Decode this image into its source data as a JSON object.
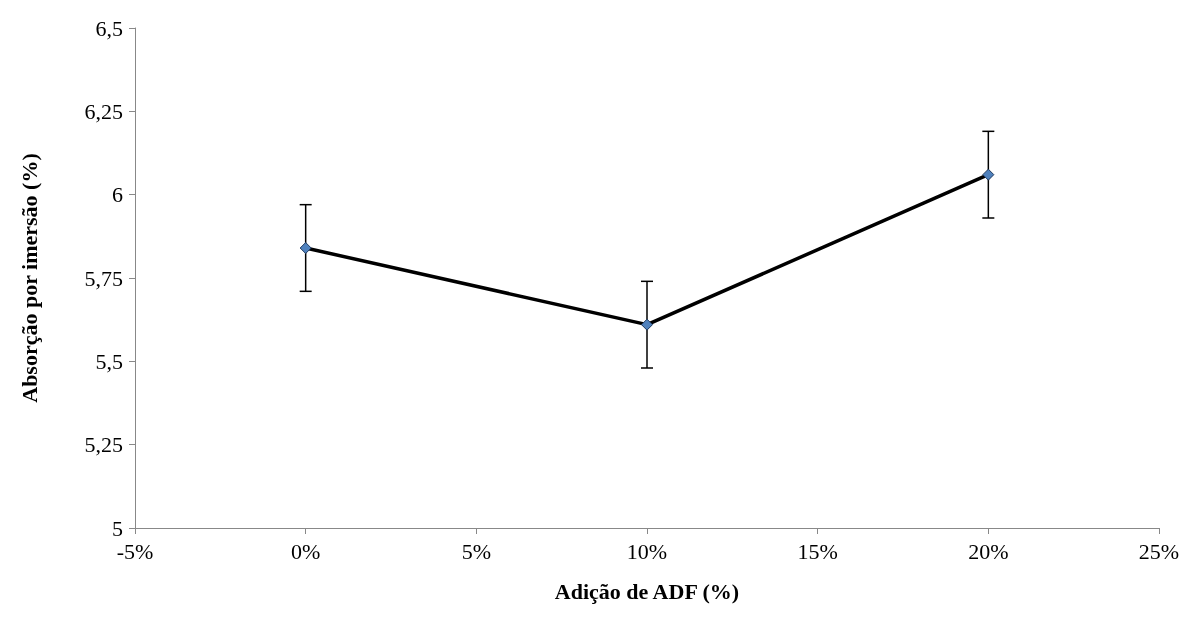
{
  "chart_data": {
    "type": "line",
    "xlabel": "Adição de ADF (%)",
    "ylabel": "Absorção por imersão (%)",
    "x": [
      0,
      10,
      20
    ],
    "series": [
      {
        "color": "#000000",
        "colors": [
          "#4f81bd",
          "#4f81bd",
          "#4f81bd"
        ],
        "values": [
          5.84,
          5.61,
          6.06
        ],
        "errors": [
          0.13,
          0.13,
          0.13
        ]
      }
    ],
    "xlim": [
      -5,
      25
    ],
    "xticks": [
      {
        "value": -5,
        "label": "-5%"
      },
      {
        "value": 0,
        "label": "0%"
      },
      {
        "value": 5,
        "label": "5%"
      },
      {
        "value": 10,
        "label": "10%"
      },
      {
        "value": 15,
        "label": "15%"
      },
      {
        "value": 20,
        "label": "20%"
      },
      {
        "value": 25,
        "label": "25%"
      }
    ],
    "ylim": [
      5,
      6.5
    ],
    "yticks": [
      5,
      {
        "value": 5.25,
        "label": "5,25"
      },
      {
        "value": 5.5,
        "label": "5,5"
      },
      {
        "value": 5.75,
        "label": "5,75"
      },
      6,
      {
        "value": 6.25,
        "label": "6,25"
      },
      {
        "value": 6.5,
        "label": "6,5"
      }
    ],
    "grid": false,
    "marker": "diamond",
    "line_style": "solid"
  }
}
